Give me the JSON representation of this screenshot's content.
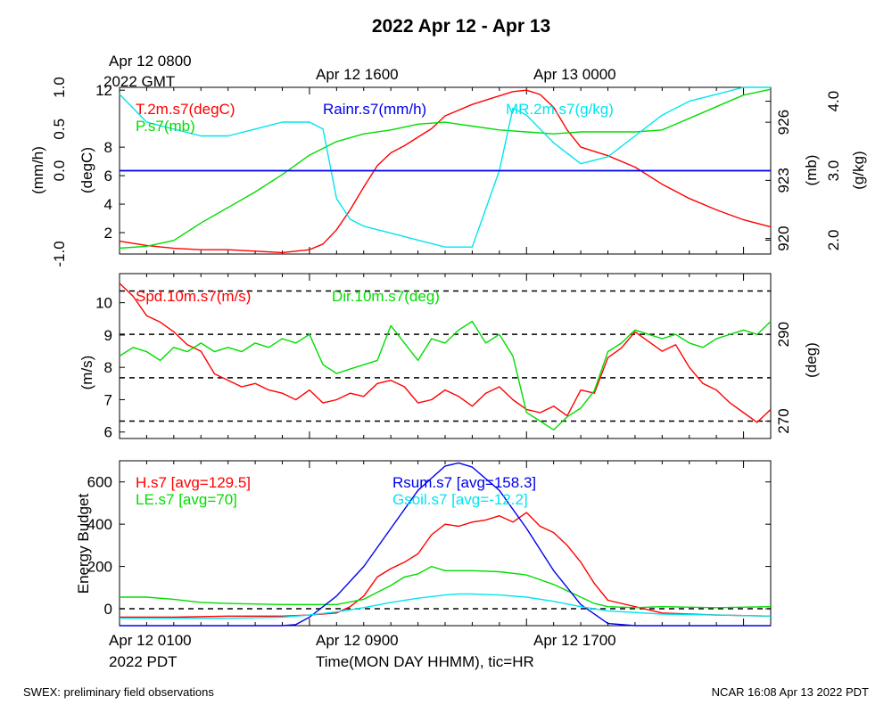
{
  "title": "2022 Apr 12 - Apr 13",
  "top_axis": {
    "tick_labels": [
      "Apr 12 0800",
      "Apr 12 1600",
      "Apr 13 0000"
    ],
    "timezone_label": "2022 GMT"
  },
  "bottom_axis": {
    "tick_labels": [
      "Apr 12 0100",
      "Apr 12 0900",
      "Apr 12 1700"
    ],
    "timezone_label": "2022 PDT",
    "xlabel": "Time(MON DAY HHMM), tic=HR"
  },
  "footer": {
    "left": "SWEX: preliminary field observations",
    "right": "NCAR 16:08 Apr 13 2022 PDT"
  },
  "colors": {
    "red": "#ff0000",
    "green": "#00dd00",
    "cyan": "#00e5ee",
    "blue": "#0000ee",
    "black": "#000000"
  },
  "chart_data": [
    {
      "type": "line",
      "x_range_hours": [
        0,
        24
      ],
      "x_ticks_hours": [
        7,
        15,
        23
      ],
      "axes": {
        "rain": {
          "label": "(mm/h)",
          "ticks": [
            "1.0",
            "0.5",
            "0.0",
            "-1.0"
          ],
          "tick_values": [
            1.0,
            0.5,
            0.0,
            -1.0
          ],
          "range": [
            -1.0,
            1.0
          ]
        },
        "temp": {
          "label": "(degC)",
          "ticks": [
            "12",
            "8",
            "6",
            "4",
            "2"
          ],
          "tick_values": [
            12,
            8,
            6,
            4,
            2
          ],
          "range": [
            0.5,
            12.2
          ]
        },
        "pres": {
          "label": "(mb)",
          "ticks": [
            "926",
            "923",
            "920"
          ],
          "tick_values": [
            926,
            923,
            920
          ],
          "range": [
            919.2,
            927.8
          ]
        },
        "mr": {
          "label": "(g/kg)",
          "ticks": [
            "4.0",
            "3.0",
            "2.0"
          ],
          "tick_values": [
            4.0,
            3.0,
            2.0
          ],
          "range": [
            1.8,
            4.2
          ]
        }
      },
      "series": [
        {
          "name": "T.2m.s7(degC)",
          "color": "#ff0000",
          "axis": "temp",
          "x": [
            0,
            1,
            2,
            3,
            4,
            5,
            6,
            7,
            7.5,
            8,
            8.5,
            9,
            9.5,
            10,
            10.5,
            11,
            11.5,
            12,
            13,
            14,
            14.5,
            15,
            15.5,
            16,
            16.5,
            17,
            18,
            19,
            20,
            21,
            22,
            23,
            24
          ],
          "y": [
            1.4,
            1.1,
            0.9,
            0.8,
            0.8,
            0.7,
            0.6,
            0.8,
            1.2,
            2.2,
            3.6,
            5.2,
            6.7,
            7.6,
            8.1,
            8.7,
            9.3,
            10.2,
            11.0,
            11.6,
            11.9,
            12.0,
            11.7,
            10.8,
            9.2,
            8.0,
            7.4,
            6.6,
            5.4,
            4.4,
            3.6,
            2.9,
            2.4
          ]
        },
        {
          "name": "P.s7(mb)",
          "color": "#00dd00",
          "axis": "pres",
          "x": [
            0,
            1,
            2,
            3,
            4,
            5,
            6,
            7,
            8,
            9,
            10,
            11,
            12,
            13,
            14,
            15,
            16,
            17,
            18,
            19,
            20,
            21,
            22,
            23,
            24
          ],
          "y": [
            919.5,
            919.6,
            919.9,
            920.8,
            921.6,
            922.4,
            923.3,
            924.3,
            925.0,
            925.4,
            925.6,
            925.9,
            926.0,
            925.8,
            925.6,
            925.5,
            925.4,
            925.5,
            925.5,
            925.5,
            925.6,
            926.2,
            926.8,
            927.4,
            927.7
          ]
        },
        {
          "name": "MR.2m.s7(g/kg)",
          "color": "#00e5ee",
          "axis": "mr",
          "x": [
            0,
            0.5,
            1,
            2,
            3,
            4,
            5,
            6,
            7,
            7.5,
            8,
            8.5,
            9,
            10,
            11,
            12,
            13,
            14,
            14.5,
            15,
            15.5,
            16,
            17,
            18,
            19,
            20,
            21,
            22,
            23,
            24
          ],
          "y": [
            4.1,
            3.9,
            3.7,
            3.6,
            3.5,
            3.5,
            3.6,
            3.7,
            3.7,
            3.6,
            2.6,
            2.3,
            2.2,
            2.1,
            2.0,
            1.9,
            1.9,
            3.0,
            3.9,
            3.8,
            3.6,
            3.4,
            3.1,
            3.2,
            3.5,
            3.8,
            4.0,
            4.1,
            4.2,
            4.2
          ]
        },
        {
          "name": "Rainr.s7(mm/h)",
          "color": "#0000ee",
          "axis": "rain",
          "x": [
            0,
            24
          ],
          "y": [
            0.0,
            0.0
          ]
        }
      ],
      "reference_lines": [
        {
          "axis": "rain",
          "value": 0.0,
          "style": "solid"
        }
      ]
    },
    {
      "type": "line",
      "x_range_hours": [
        0,
        24
      ],
      "x_ticks_hours": [
        7,
        15,
        23
      ],
      "axes": {
        "spd": {
          "label": "(m/s)",
          "ticks": [
            "10",
            "9",
            "8",
            "7",
            "6"
          ],
          "tick_values": [
            10,
            9,
            8,
            7,
            6
          ],
          "range": [
            5.8,
            10.9
          ]
        },
        "dir": {
          "label": "(deg)",
          "ticks": [
            "290",
            "270"
          ],
          "tick_values": [
            290,
            270
          ],
          "range": [
            266,
            304
          ]
        }
      },
      "series": [
        {
          "name": "Spd.10m.s7(m/s)",
          "color": "#ff0000",
          "axis": "spd",
          "x": [
            0,
            0.5,
            1,
            1.5,
            2,
            2.5,
            3,
            3.5,
            4,
            4.5,
            5,
            5.5,
            6,
            6.5,
            7,
            7.5,
            8,
            8.5,
            9,
            9.5,
            10,
            10.5,
            11,
            11.5,
            12,
            12.5,
            13,
            13.5,
            14,
            14.5,
            15,
            15.5,
            16,
            16.5,
            17,
            17.5,
            18,
            18.5,
            19,
            19.5,
            20,
            20.5,
            21,
            21.5,
            22,
            22.5,
            23,
            23.5,
            24
          ],
          "y": [
            10.6,
            10.2,
            9.6,
            9.4,
            9.1,
            8.7,
            8.5,
            7.8,
            7.6,
            7.4,
            7.5,
            7.3,
            7.2,
            7.0,
            7.3,
            6.9,
            7.0,
            7.2,
            7.1,
            7.5,
            7.6,
            7.4,
            6.9,
            7.0,
            7.3,
            7.1,
            6.8,
            7.2,
            7.4,
            7.0,
            6.7,
            6.6,
            6.8,
            6.5,
            7.3,
            7.2,
            8.3,
            8.6,
            9.1,
            8.8,
            8.5,
            8.7,
            8.0,
            7.5,
            7.3,
            6.9,
            6.6,
            6.3,
            6.7
          ]
        },
        {
          "name": "Dir.10m.s7(deg)",
          "color": "#00dd00",
          "axis": "dir",
          "x": [
            0,
            0.5,
            1,
            1.5,
            2,
            2.5,
            3,
            3.5,
            4,
            4.5,
            5,
            5.5,
            6,
            6.5,
            7,
            7.5,
            8,
            8.5,
            9,
            9.5,
            10,
            10.5,
            11,
            11.5,
            12,
            12.5,
            13,
            13.5,
            14,
            14.5,
            15,
            15.5,
            16,
            16.5,
            17,
            17.5,
            18,
            18.5,
            19,
            19.5,
            20,
            20.5,
            21,
            21.5,
            22,
            22.5,
            23,
            23.5,
            24
          ],
          "y": [
            285,
            287,
            286,
            284,
            287,
            286,
            288,
            286,
            287,
            286,
            288,
            287,
            289,
            288,
            290,
            283,
            281,
            282,
            283,
            284,
            292,
            288,
            284,
            289,
            288,
            291,
            293,
            288,
            290,
            285,
            272,
            270,
            268,
            271,
            273,
            277,
            286,
            288,
            291,
            290,
            289,
            290,
            288,
            287,
            289,
            290,
            291,
            290,
            293
          ]
        }
      ],
      "reference_lines": [
        {
          "axis": "dir",
          "value": 300,
          "style": "dashed"
        },
        {
          "axis": "dir",
          "value": 290,
          "style": "dashed"
        },
        {
          "axis": "dir",
          "value": 280,
          "style": "dashed"
        },
        {
          "axis": "dir",
          "value": 270,
          "style": "dashed"
        }
      ]
    },
    {
      "type": "line",
      "x_range_hours": [
        0,
        24
      ],
      "x_ticks_hours": [
        7,
        15,
        23
      ],
      "ylabel": "Energy Budget",
      "y_ticks": [
        "600",
        "400",
        "200",
        "0"
      ],
      "y_tick_values": [
        600,
        400,
        200,
        0
      ],
      "y_range": [
        -80,
        700
      ],
      "series": [
        {
          "name": "H.s7 [avg=129.5]",
          "color": "#ff0000",
          "x": [
            0,
            2,
            4,
            6,
            7,
            8,
            8.5,
            9,
            9.5,
            10,
            10.5,
            11,
            11.5,
            12,
            12.5,
            13,
            13.5,
            14,
            14.5,
            15,
            15.5,
            16,
            16.5,
            17,
            17.5,
            18,
            20,
            22,
            24
          ],
          "y": [
            -40,
            -40,
            -35,
            -35,
            -30,
            -20,
            10,
            60,
            150,
            190,
            220,
            260,
            350,
            400,
            390,
            410,
            420,
            440,
            410,
            455,
            390,
            360,
            300,
            220,
            120,
            40,
            -20,
            -30,
            -35
          ]
        },
        {
          "name": "LE.s7 [avg=70]",
          "color": "#00dd00",
          "x": [
            0,
            1,
            2,
            3,
            4,
            6,
            8,
            9,
            10,
            10.5,
            11,
            11.5,
            12,
            13,
            14,
            15,
            16,
            17,
            17.5,
            18,
            19,
            20,
            22,
            24
          ],
          "y": [
            55,
            55,
            45,
            30,
            25,
            20,
            20,
            45,
            110,
            150,
            165,
            200,
            180,
            180,
            175,
            160,
            115,
            55,
            25,
            10,
            5,
            10,
            5,
            10
          ]
        },
        {
          "name": "Rsum.s7 [avg=158.3]",
          "color": "#0000ee",
          "x": [
            0,
            6,
            6.5,
            7,
            8,
            9,
            10,
            11,
            12,
            12.5,
            13,
            14,
            15,
            16,
            17,
            18,
            19,
            20,
            24
          ],
          "y": [
            -80,
            -80,
            -75,
            -40,
            60,
            200,
            380,
            560,
            675,
            690,
            670,
            560,
            380,
            180,
            20,
            -70,
            -80,
            -80,
            -80
          ]
        },
        {
          "name": "Gsoil.s7 [avg=-12.2]",
          "color": "#00e5ee",
          "x": [
            0,
            2,
            4,
            6,
            7,
            8,
            9,
            10,
            11,
            12,
            12.5,
            13,
            14,
            15,
            16,
            17,
            18,
            20,
            22,
            24
          ],
          "y": [
            -45,
            -45,
            -45,
            -40,
            -30,
            -15,
            5,
            30,
            50,
            65,
            70,
            70,
            65,
            55,
            35,
            10,
            -10,
            -25,
            -30,
            -35
          ]
        }
      ],
      "reference_lines": [
        {
          "value": 0,
          "style": "dashed"
        }
      ]
    }
  ]
}
